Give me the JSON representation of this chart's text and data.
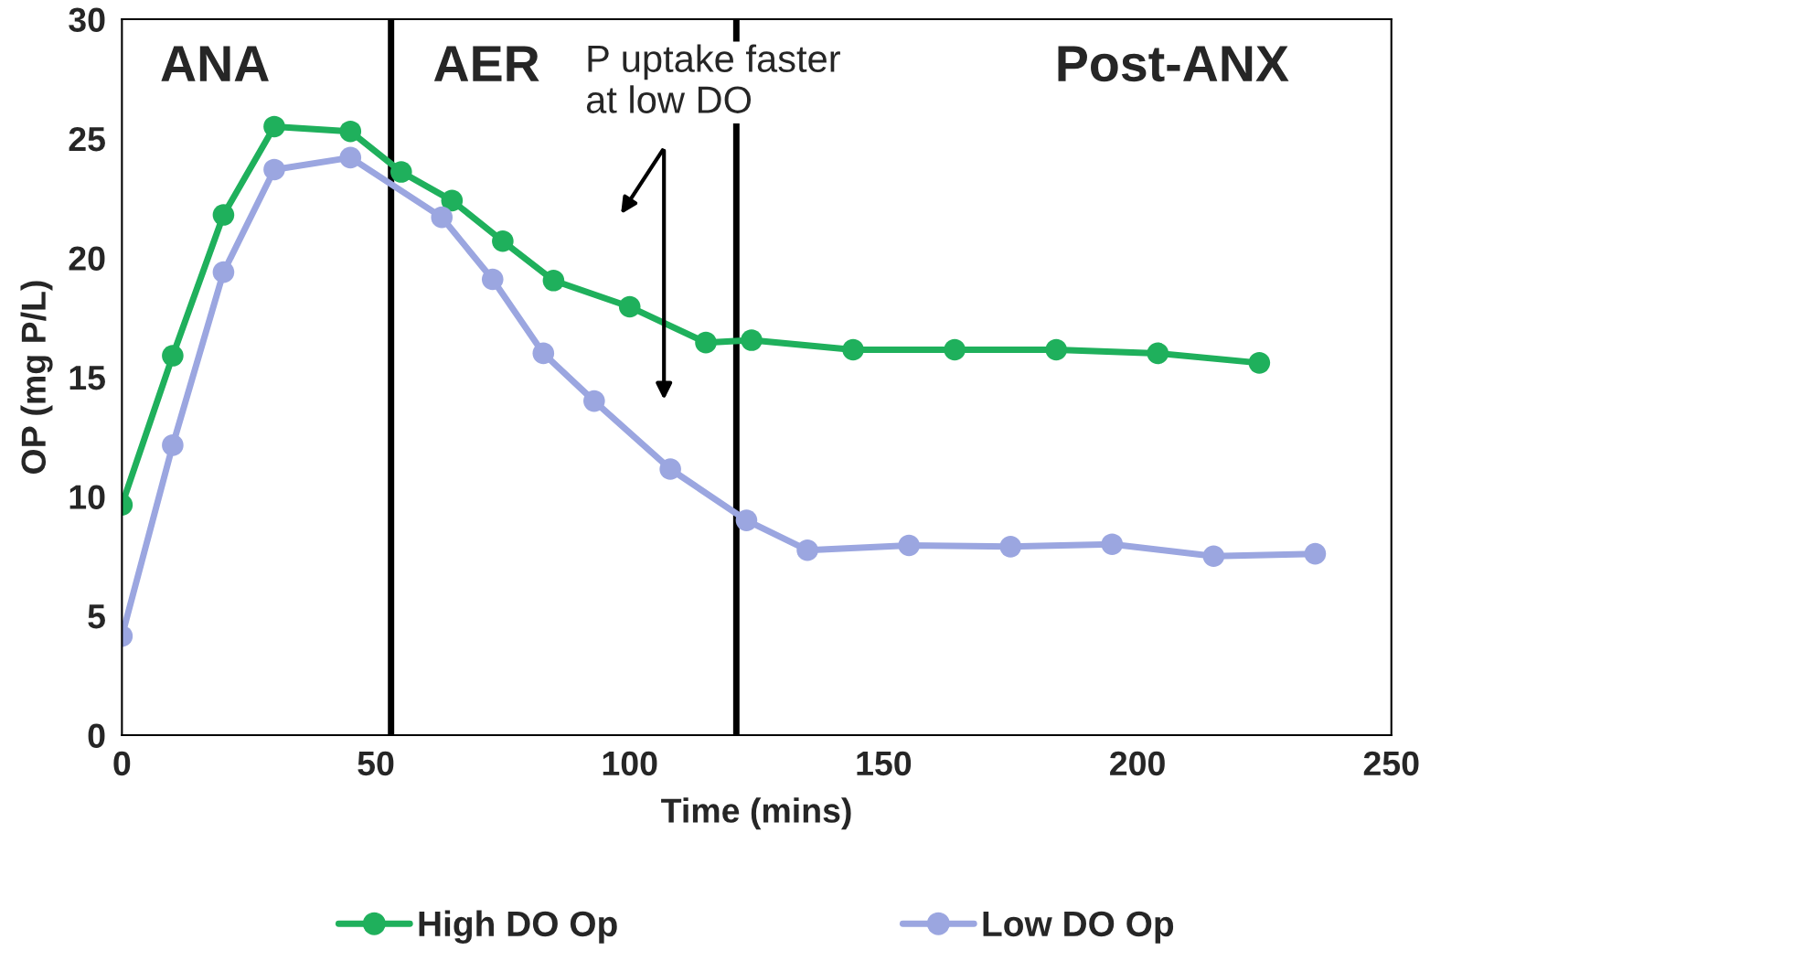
{
  "chart_data": {
    "type": "line",
    "xlabel": "Time (mins)",
    "ylabel": "OP (mg P/L)",
    "xlim": [
      0,
      250
    ],
    "xticks": [
      0,
      50,
      100,
      150,
      200,
      250
    ],
    "ylim": [
      0,
      30
    ],
    "yticks": [
      0,
      5,
      10,
      15,
      20,
      25,
      30
    ],
    "grid": false,
    "legend": "bottom",
    "marker": "circle",
    "line_style": "solid",
    "series": [
      {
        "name": "High DO Op",
        "color": "#1fb05c",
        "x": [
          0,
          10,
          20,
          30,
          45,
          55,
          65,
          75,
          85,
          100,
          115,
          124,
          144,
          164,
          184,
          204,
          224
        ],
        "values": [
          9.65,
          15.9,
          21.8,
          25.5,
          25.3,
          23.6,
          22.4,
          20.7,
          19.05,
          17.95,
          16.45,
          16.55,
          16.15,
          16.15,
          16.15,
          16.0,
          15.6
        ]
      },
      {
        "name": "Low DO Op",
        "color": "#9ba6e0",
        "x": [
          0,
          10,
          20,
          30,
          45,
          63,
          73,
          83,
          93,
          108,
          123,
          135,
          155,
          175,
          195,
          215,
          235
        ],
        "values": [
          4.15,
          12.15,
          19.4,
          23.7,
          24.2,
          21.7,
          19.1,
          16.0,
          14.0,
          11.15,
          9.0,
          7.75,
          7.95,
          7.9,
          8.0,
          7.5,
          7.6
        ]
      }
    ],
    "ref_lines": [
      {
        "axis": "x",
        "value": 53,
        "color": "#000000"
      },
      {
        "axis": "x",
        "value": 121,
        "color": "#000000"
      }
    ],
    "annotations": [
      "ANA",
      "AER",
      "Post-ANX",
      "P uptake faster\nat low DO"
    ]
  }
}
